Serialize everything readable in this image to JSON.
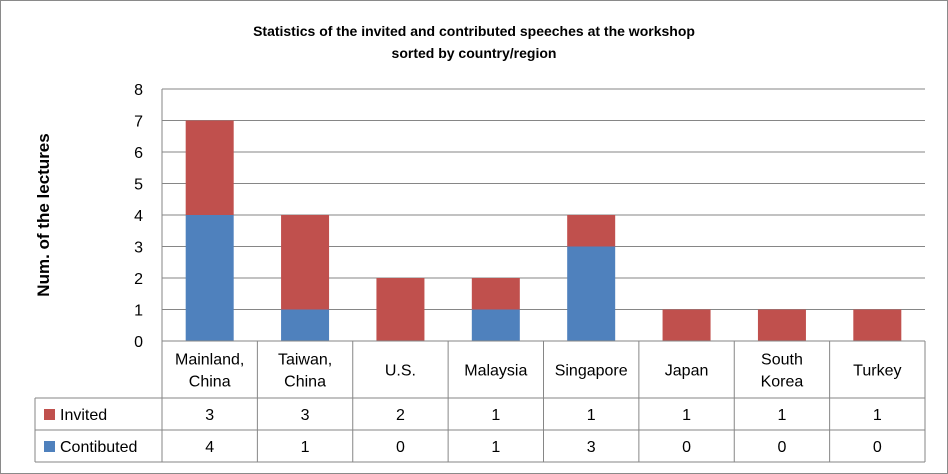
{
  "chart_data": {
    "type": "bar",
    "stacked": true,
    "title": "Statistics of the invited and contributed speeches at the workshop sorted by country/region",
    "title_lines": [
      "Statistics of the invited and contributed speeches at the workshop",
      "sorted by country/region"
    ],
    "xlabel": "",
    "ylabel": "Num. of the lectures",
    "ylim": [
      0,
      8
    ],
    "yticks": [
      "0",
      "1",
      "2",
      "3",
      "4",
      "5",
      "6",
      "7",
      "8"
    ],
    "grid": true,
    "categories": [
      [
        "Mainland,",
        "China"
      ],
      [
        "Taiwan,",
        "China"
      ],
      [
        "U.S."
      ],
      [
        "Malaysia"
      ],
      [
        "Singapore"
      ],
      [
        "Japan"
      ],
      [
        "South",
        "Korea"
      ],
      [
        "Turkey"
      ]
    ],
    "series": [
      {
        "name": "Contibuted",
        "color": "#4f81bd",
        "values": [
          4,
          1,
          0,
          1,
          3,
          0,
          0,
          0
        ]
      },
      {
        "name": "Invited",
        "color": "#c0504d",
        "values": [
          3,
          3,
          2,
          1,
          1,
          1,
          1,
          1
        ]
      }
    ],
    "data_table_rows": [
      "Invited",
      "Contibuted"
    ],
    "legend": "data-table-keys"
  }
}
